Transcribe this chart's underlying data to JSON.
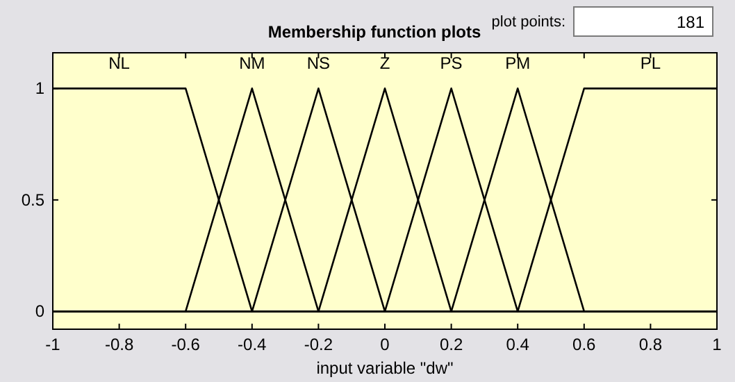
{
  "chart_data": {
    "type": "line",
    "title": "Membership function plots",
    "xlabel": "input variable \"dw\"",
    "annotations": [
      "plot points:",
      "181"
    ],
    "xlim": [
      -1,
      1
    ],
    "ylim": [
      -0.08,
      1.16
    ],
    "xticks": [
      -1,
      -0.8,
      -0.6,
      -0.4,
      -0.2,
      0,
      0.2,
      0.4,
      0.6,
      0.8,
      1
    ],
    "yticks": [
      0,
      0.5,
      1
    ],
    "grid": false,
    "legend": "top",
    "line_style": "solid",
    "series": [
      {
        "name": "NL",
        "color": "#000000",
        "x": [
          -1,
          -0.6,
          -0.4,
          1
        ],
        "values": [
          1,
          1,
          0,
          0
        ]
      },
      {
        "name": "NM",
        "color": "#000000",
        "x": [
          -1,
          -0.6,
          -0.4,
          -0.2,
          1
        ],
        "values": [
          0,
          0,
          1,
          0,
          0
        ]
      },
      {
        "name": "NS",
        "color": "#000000",
        "x": [
          -1,
          -0.4,
          -0.2,
          0,
          1
        ],
        "values": [
          0,
          0,
          1,
          0,
          0
        ]
      },
      {
        "name": "Z",
        "color": "#000000",
        "x": [
          -1,
          -0.2,
          0,
          0.2,
          1
        ],
        "values": [
          0,
          0,
          1,
          0,
          0
        ]
      },
      {
        "name": "PS",
        "color": "#000000",
        "x": [
          -1,
          0,
          0.2,
          0.4,
          1
        ],
        "values": [
          0,
          0,
          1,
          0,
          0
        ]
      },
      {
        "name": "PM",
        "color": "#000000",
        "x": [
          -1,
          0.2,
          0.4,
          0.6,
          1
        ],
        "values": [
          0,
          0,
          1,
          0,
          0
        ]
      },
      {
        "name": "PL",
        "color": "#000000",
        "x": [
          -1,
          0.4,
          0.6,
          1
        ],
        "values": [
          0,
          0,
          1,
          1
        ]
      }
    ]
  }
}
